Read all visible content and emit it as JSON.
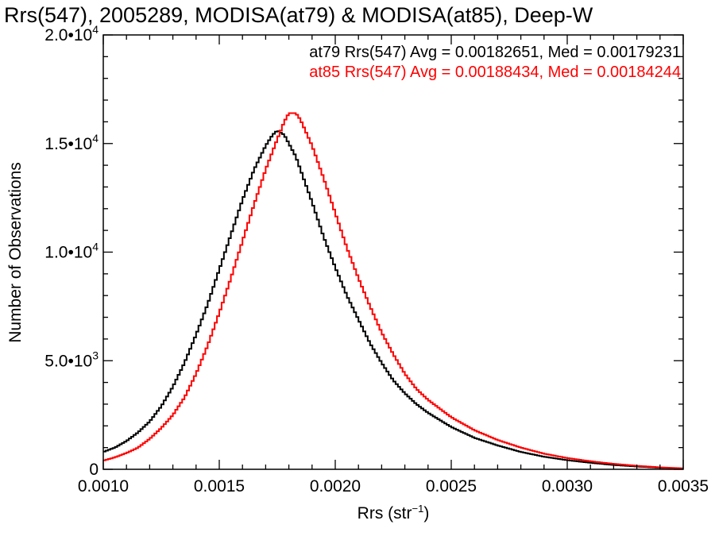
{
  "chart_data": {
    "type": "line",
    "title": "Rrs(547), 2005289, MODISA(at79) & MODISA(at85), Deep-W",
    "xlabel_main": "Rrs (str",
    "xlabel_sup": "−1",
    "xlabel_close": ")",
    "ylabel": "Number of Observations",
    "xlim": [
      0.001,
      0.0035
    ],
    "ylim": [
      0,
      20000
    ],
    "x_ticks": [
      {
        "value": 0.001,
        "label": "0.0010"
      },
      {
        "value": 0.0015,
        "label": "0.0015"
      },
      {
        "value": 0.002,
        "label": "0.0020"
      },
      {
        "value": 0.0025,
        "label": "0.0025"
      },
      {
        "value": 0.003,
        "label": "0.0030"
      },
      {
        "value": 0.0035,
        "label": "0.0035"
      }
    ],
    "y_ticks": [
      {
        "value": 0,
        "mantissa": "0",
        "exponent": ""
      },
      {
        "value": 5000,
        "mantissa": "5.0•10",
        "exponent": "3"
      },
      {
        "value": 10000,
        "mantissa": "1.0•10",
        "exponent": "4"
      },
      {
        "value": 15000,
        "mantissa": "1.5•10",
        "exponent": "4"
      },
      {
        "value": 20000,
        "mantissa": "2.0•10",
        "exponent": "4"
      }
    ],
    "legend_position": "top-right",
    "series": [
      {
        "name": "at79",
        "color": "#000000",
        "legend_text": "at79 Rrs(547) Avg = 0.00182651, Med = 0.00179231",
        "x": [
          0.001,
          0.00105,
          0.0011,
          0.00115,
          0.0012,
          0.00125,
          0.0013,
          0.00135,
          0.0014,
          0.00145,
          0.0015,
          0.00155,
          0.0016,
          0.00165,
          0.0017,
          0.00173,
          0.00175,
          0.00178,
          0.0018,
          0.00183,
          0.00185,
          0.0019,
          0.00195,
          0.002,
          0.00205,
          0.0021,
          0.00215,
          0.0022,
          0.00225,
          0.0023,
          0.00235,
          0.0024,
          0.0025,
          0.0026,
          0.0027,
          0.0028,
          0.0029,
          0.003,
          0.0031,
          0.0032,
          0.0033,
          0.0034,
          0.0035
        ],
        "y": [
          800,
          1000,
          1300,
          1700,
          2200,
          2900,
          3800,
          4900,
          6200,
          7600,
          9200,
          10800,
          12400,
          13800,
          14900,
          15400,
          15600,
          15400,
          15000,
          14400,
          13800,
          12300,
          10700,
          9300,
          8000,
          6900,
          5800,
          4900,
          4100,
          3500,
          3000,
          2600,
          1950,
          1450,
          1100,
          800,
          580,
          420,
          300,
          200,
          130,
          70,
          40
        ]
      },
      {
        "name": "at85",
        "color": "#ff0000",
        "legend_text": "at85 Rrs(547) Avg = 0.00188434, Med = 0.00184244",
        "x": [
          0.001,
          0.00105,
          0.0011,
          0.00115,
          0.0012,
          0.00125,
          0.0013,
          0.00135,
          0.0014,
          0.00145,
          0.0015,
          0.00155,
          0.0016,
          0.00165,
          0.0017,
          0.00175,
          0.00178,
          0.0018,
          0.00183,
          0.00185,
          0.0019,
          0.00195,
          0.002,
          0.00205,
          0.0021,
          0.00215,
          0.0022,
          0.00225,
          0.0023,
          0.00235,
          0.0024,
          0.0025,
          0.0026,
          0.0027,
          0.0028,
          0.0029,
          0.003,
          0.0031,
          0.0032,
          0.0033,
          0.0034,
          0.0035
        ],
        "y": [
          400,
          550,
          750,
          1000,
          1400,
          1900,
          2500,
          3300,
          4400,
          5700,
          7200,
          8800,
          10500,
          12200,
          13800,
          15200,
          16000,
          16400,
          16400,
          16100,
          14900,
          13400,
          11800,
          10200,
          8800,
          7500,
          6300,
          5300,
          4400,
          3700,
          3200,
          2400,
          1800,
          1350,
          1000,
          720,
          520,
          370,
          250,
          160,
          90,
          40
        ]
      }
    ]
  }
}
